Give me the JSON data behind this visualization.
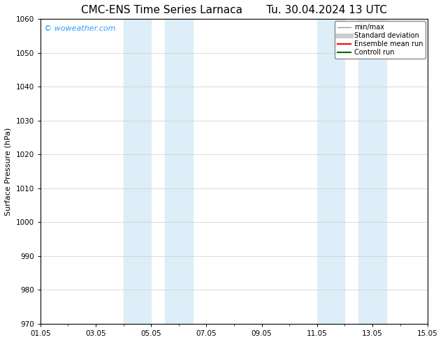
{
  "title_left": "CMC-ENS Time Series Larnaca",
  "title_right": "Tu. 30.04.2024 13 UTC",
  "ylabel": "Surface Pressure (hPa)",
  "ylim": [
    970,
    1060
  ],
  "yticks": [
    970,
    980,
    990,
    1000,
    1010,
    1020,
    1030,
    1040,
    1050,
    1060
  ],
  "xlim_start": 0,
  "xlim_end": 14,
  "xtick_labels": [
    "01.05",
    "03.05",
    "05.05",
    "07.05",
    "09.05",
    "11.05",
    "13.05",
    "15.05"
  ],
  "xtick_positions": [
    0,
    2,
    4,
    6,
    8,
    10,
    12,
    14
  ],
  "shaded_bands": [
    {
      "x_start": 3.0,
      "x_end": 4.0
    },
    {
      "x_start": 4.5,
      "x_end": 5.5
    },
    {
      "x_start": 10.0,
      "x_end": 11.0
    },
    {
      "x_start": 11.5,
      "x_end": 12.5
    }
  ],
  "shaded_color": "#ddeef8",
  "watermark_text": "© woweather.com",
  "watermark_color": "#3399ff",
  "legend_items": [
    {
      "label": "min/max",
      "color": "#999999",
      "lw": 1.0,
      "style": "solid"
    },
    {
      "label": "Standard deviation",
      "color": "#cccccc",
      "lw": 5,
      "style": "solid"
    },
    {
      "label": "Ensemble mean run",
      "color": "#ff0000",
      "lw": 1.5,
      "style": "solid"
    },
    {
      "label": "Controll run",
      "color": "#006400",
      "lw": 1.5,
      "style": "solid"
    }
  ],
  "bg_color": "#ffffff",
  "grid_color": "#cccccc",
  "title_fontsize": 11,
  "ylabel_fontsize": 8,
  "tick_fontsize": 7.5,
  "legend_fontsize": 7,
  "watermark_fontsize": 8
}
